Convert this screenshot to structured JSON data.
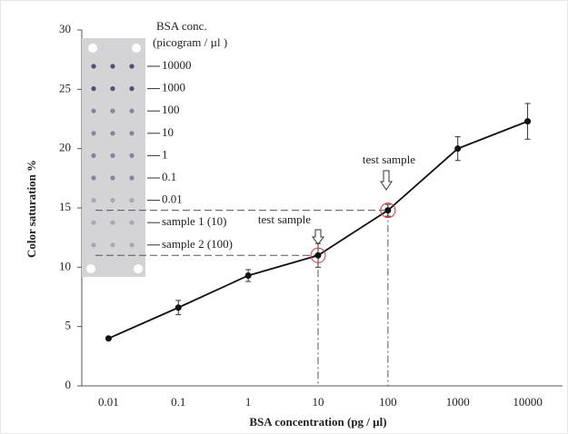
{
  "chart_data": {
    "type": "line",
    "x_label": "BSA concentration (pg / µl)",
    "y_label": "Color saturation %",
    "categories": [
      "0.01",
      "0.1",
      "1",
      "10",
      "100",
      "1000",
      "10000"
    ],
    "series": [
      {
        "color": "#111111",
        "values": [
          4.0,
          6.6,
          9.3,
          11.0,
          14.8,
          20.0,
          22.3
        ],
        "errors": [
          0.1,
          0.6,
          0.5,
          1.0,
          0.5,
          1.0,
          1.5
        ]
      }
    ],
    "ylim": [
      0,
      30
    ],
    "yticks": [
      0,
      5,
      10,
      15,
      20,
      25,
      30
    ],
    "annotations": [
      "test sample",
      "test sample"
    ],
    "inset_title": [
      "BSA conc.",
      "(picogram / µl )"
    ],
    "inset_labels": [
      "10000",
      "1000",
      "100",
      "10",
      "1",
      "0.1",
      "0.01",
      "sample 1 (10)",
      "sample 2 (100)"
    ]
  }
}
